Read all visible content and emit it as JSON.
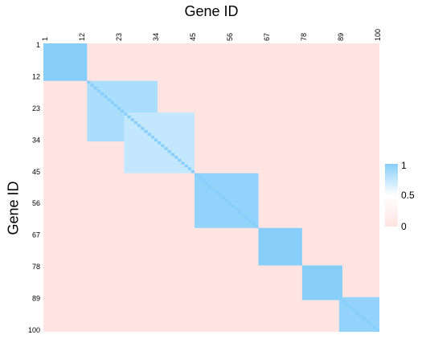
{
  "chart_data": {
    "type": "heatmap",
    "xlabel": "Gene ID",
    "ylabel": "Gene ID",
    "n": 100,
    "tick_labels": [
      "1",
      "12",
      "23",
      "34",
      "45",
      "56",
      "67",
      "78",
      "89",
      "100"
    ],
    "clusters": [
      {
        "genes": [
          1,
          13
        ],
        "value": 1.0
      },
      {
        "genes": [
          14,
          34
        ],
        "value": 0.85
      },
      {
        "genes": [
          25,
          45
        ],
        "value": 0.75
      },
      {
        "genes": [
          46,
          64
        ],
        "value": 0.95
      },
      {
        "genes": [
          65,
          77
        ],
        "value": 1.0
      },
      {
        "genes": [
          78,
          89
        ],
        "value": 1.0
      },
      {
        "genes": [
          89,
          100
        ],
        "value": 0.95
      }
    ],
    "background_value": 0.05,
    "legend": {
      "ticks": [
        "1",
        "0.5",
        "0"
      ],
      "min": 0,
      "max": 1
    },
    "colors": {
      "low": "#ffe4e1",
      "mid": "#ffffff",
      "high": "#87cefa"
    }
  }
}
